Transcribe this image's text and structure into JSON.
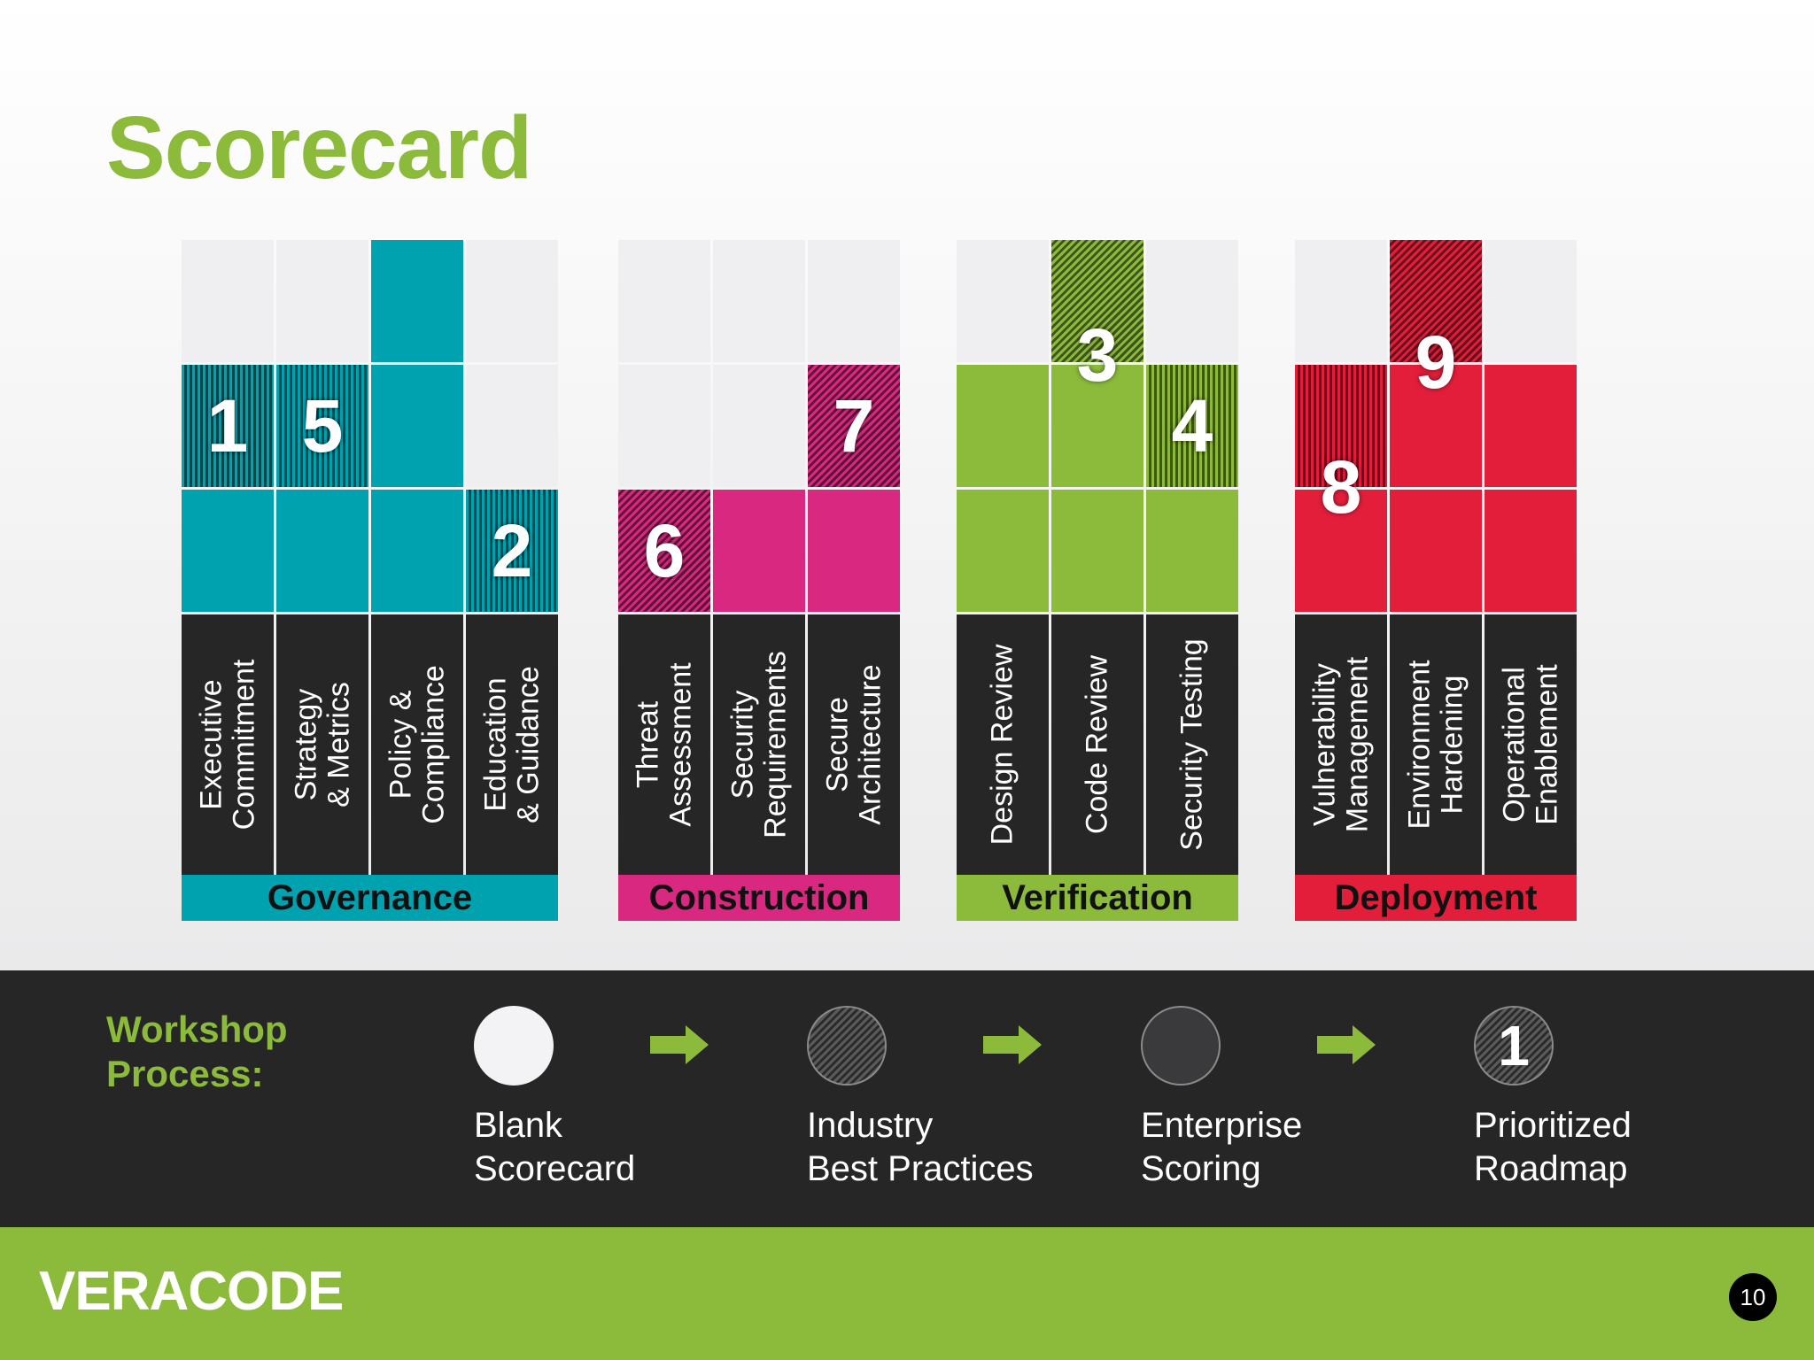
{
  "title": "Scorecard",
  "groups": [
    {
      "name": "Governance",
      "color": "#00a2b0",
      "practices": [
        {
          "label": "Executive\nCommitment",
          "level": 2,
          "marker": 1,
          "marker_level": 2
        },
        {
          "label": "Strategy\n& Metrics",
          "level": 2,
          "marker": 5,
          "marker_level": 2
        },
        {
          "label": "Policy &\nCompliance",
          "level": 3,
          "marker": null,
          "marker_level": null
        },
        {
          "label": "Education\n& Guidance",
          "level": 1,
          "marker": 2,
          "marker_level": 1
        }
      ]
    },
    {
      "name": "Construction",
      "color": "#d8287f",
      "practices": [
        {
          "label": "Threat\nAssessment",
          "level": 1,
          "marker": 6,
          "marker_level": 1
        },
        {
          "label": "Security\nRequirements",
          "level": 1,
          "marker": null,
          "marker_level": null
        },
        {
          "label": "Secure\nArchitecture",
          "level": 2,
          "marker": 7,
          "marker_level": 2
        }
      ]
    },
    {
      "name": "Verification",
      "color": "#8cbb3c",
      "practices": [
        {
          "label": "Design Review",
          "level": 2,
          "marker": null,
          "marker_level": null
        },
        {
          "label": "Code Review",
          "level": 3,
          "marker": 3,
          "marker_level": 3
        },
        {
          "label": "Security Testing",
          "level": 2,
          "marker": 4,
          "marker_level": 2
        }
      ]
    },
    {
      "name": "Deployment",
      "color": "#e31e3b",
      "practices": [
        {
          "label": "Vulnerability\nManagement",
          "level": 2,
          "marker": 8,
          "marker_level": 2
        },
        {
          "label": "Environment\nHardening",
          "level": 3,
          "marker": 9,
          "marker_level": 3
        },
        {
          "label": "Operational\nEnablement",
          "level": 2,
          "marker": null,
          "marker_level": null
        }
      ]
    }
  ],
  "workshop": {
    "title": "Workshop\nProcess:",
    "steps": [
      {
        "label": "Blank\nScorecard",
        "style": "blank",
        "number": ""
      },
      {
        "label": "Industry\nBest Practices",
        "style": "hatched",
        "number": ""
      },
      {
        "label": "Enterprise\nScoring",
        "style": "dark",
        "number": ""
      },
      {
        "label": "Prioritized\nRoadmap",
        "style": "numbered",
        "number": "1"
      }
    ]
  },
  "footer": {
    "logo": "VERACODE",
    "page_number": "10"
  },
  "colors": {
    "accent": "#8cbb3c",
    "empty_cell": "#efeff1",
    "label_bg": "#262626"
  }
}
